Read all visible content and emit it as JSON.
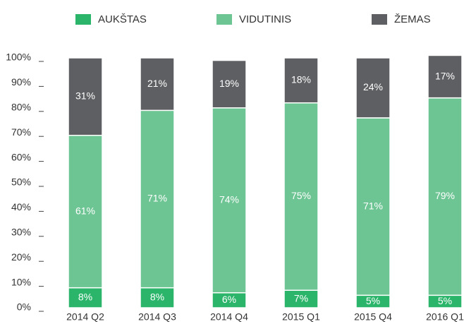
{
  "chart_data": {
    "type": "stacked_bar",
    "categories": [
      "2014 Q2",
      "2014 Q3",
      "2014 Q4",
      "2015 Q1",
      "2015 Q4",
      "2016 Q1"
    ],
    "series": [
      {
        "name": "AUKŠTAS",
        "color": "#2bb56a",
        "values": [
          8,
          8,
          6,
          7,
          5,
          5
        ],
        "value_labels": [
          "8%",
          "8%",
          "6%",
          "7%",
          "5%",
          "5%"
        ]
      },
      {
        "name": "VIDUTINIS",
        "color": "#6ec594",
        "values": [
          61,
          71,
          74,
          75,
          71,
          79
        ],
        "value_labels": [
          "61%",
          "71%",
          "74%",
          "75%",
          "71%",
          "79%"
        ]
      },
      {
        "name": "ŽEMAS",
        "color": "#5e5f62",
        "values": [
          31,
          21,
          19,
          18,
          24,
          17
        ],
        "value_labels": [
          "31%",
          "21%",
          "19%",
          "18%",
          "24%",
          "17%"
        ]
      }
    ],
    "ylim": [
      0,
      100
    ],
    "yticks": [
      {
        "value": 0,
        "label": "0%"
      },
      {
        "value": 10,
        "label": "10%"
      },
      {
        "value": 20,
        "label": "20%"
      },
      {
        "value": 30,
        "label": "30%"
      },
      {
        "value": 40,
        "label": "40%"
      },
      {
        "value": 50,
        "label": "50%"
      },
      {
        "value": 60,
        "label": "60%"
      },
      {
        "value": 70,
        "label": "70%"
      },
      {
        "value": 80,
        "label": "80%"
      },
      {
        "value": 90,
        "label": "90%"
      },
      {
        "value": 100,
        "label": "100%"
      }
    ],
    "legend": "top"
  }
}
